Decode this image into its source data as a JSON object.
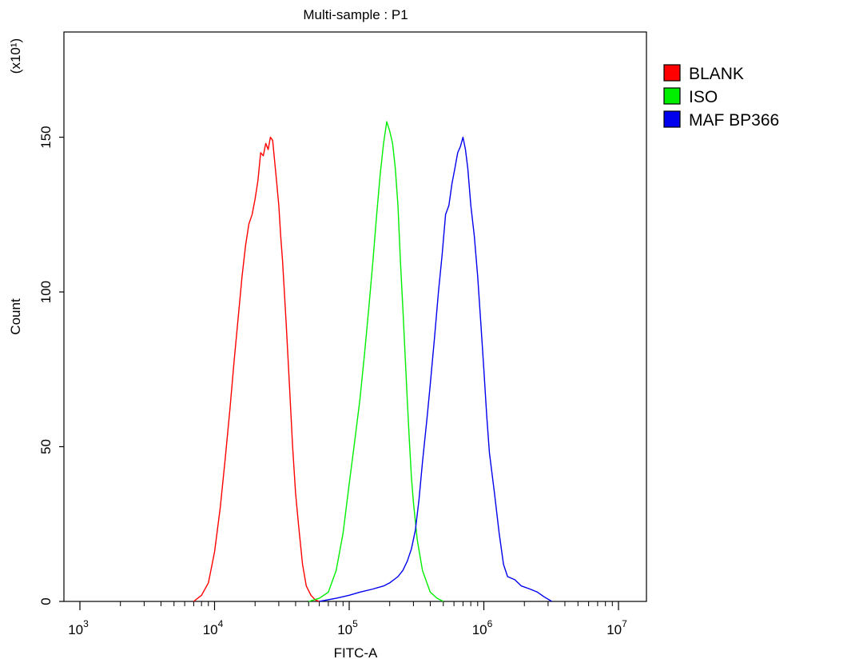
{
  "chart_data": {
    "type": "line",
    "title": "Multi-sample : P1",
    "xlabel": "FITC-A",
    "ylabel": "Count",
    "y_multiplier_label": "(x10¹)",
    "x_scale": "log",
    "xlim": [
      1000,
      10000000
    ],
    "ylim": [
      0,
      184
    ],
    "x_ticks": [
      {
        "exp": 3,
        "base": "10",
        "sup": "3"
      },
      {
        "exp": 4,
        "base": "10",
        "sup": "4"
      },
      {
        "exp": 5,
        "base": "10",
        "sup": "5"
      },
      {
        "exp": 6,
        "base": "10",
        "sup": "6"
      },
      {
        "exp": 7,
        "base": "10",
        "sup": "7"
      }
    ],
    "y_ticks": [
      0,
      50,
      100,
      150
    ],
    "legend_position": "right",
    "series": [
      {
        "name": "BLANK",
        "color": "#ff0000",
        "points": [
          [
            7000,
            0
          ],
          [
            8000,
            2
          ],
          [
            9000,
            6
          ],
          [
            10000,
            16
          ],
          [
            11000,
            30
          ],
          [
            12000,
            46
          ],
          [
            13000,
            62
          ],
          [
            14000,
            78
          ],
          [
            15000,
            92
          ],
          [
            16000,
            105
          ],
          [
            17000,
            115
          ],
          [
            18000,
            122
          ],
          [
            19000,
            125
          ],
          [
            20000,
            130
          ],
          [
            21000,
            136
          ],
          [
            22000,
            145
          ],
          [
            23000,
            144
          ],
          [
            24000,
            148
          ],
          [
            25000,
            146
          ],
          [
            26000,
            150
          ],
          [
            27000,
            149
          ],
          [
            28000,
            142
          ],
          [
            29000,
            135
          ],
          [
            30000,
            128
          ],
          [
            31000,
            118
          ],
          [
            32000,
            110
          ],
          [
            34000,
            90
          ],
          [
            36000,
            70
          ],
          [
            38000,
            50
          ],
          [
            40000,
            35
          ],
          [
            42000,
            25
          ],
          [
            45000,
            12
          ],
          [
            48000,
            5
          ],
          [
            52000,
            2
          ],
          [
            56000,
            0.5
          ],
          [
            60000,
            0
          ]
        ]
      },
      {
        "name": "ISO",
        "color": "#00ee00",
        "points": [
          [
            50000,
            0
          ],
          [
            60000,
            1
          ],
          [
            70000,
            3
          ],
          [
            80000,
            10
          ],
          [
            90000,
            22
          ],
          [
            100000,
            38
          ],
          [
            110000,
            52
          ],
          [
            120000,
            65
          ],
          [
            130000,
            80
          ],
          [
            140000,
            95
          ],
          [
            150000,
            110
          ],
          [
            160000,
            125
          ],
          [
            170000,
            138
          ],
          [
            180000,
            148
          ],
          [
            190000,
            155
          ],
          [
            200000,
            152
          ],
          [
            210000,
            148
          ],
          [
            220000,
            140
          ],
          [
            230000,
            128
          ],
          [
            240000,
            110
          ],
          [
            250000,
            95
          ],
          [
            260000,
            80
          ],
          [
            270000,
            65
          ],
          [
            280000,
            52
          ],
          [
            290000,
            40
          ],
          [
            300000,
            32
          ],
          [
            320000,
            20
          ],
          [
            350000,
            10
          ],
          [
            400000,
            3
          ],
          [
            450000,
            1
          ],
          [
            500000,
            0
          ]
        ]
      },
      {
        "name": "MAF BP366",
        "color": "#0000ee",
        "points": [
          [
            60000,
            0
          ],
          [
            80000,
            1
          ],
          [
            100000,
            2
          ],
          [
            120000,
            3
          ],
          [
            150000,
            4
          ],
          [
            180000,
            5
          ],
          [
            200000,
            6
          ],
          [
            230000,
            8
          ],
          [
            250000,
            10
          ],
          [
            270000,
            13
          ],
          [
            290000,
            17
          ],
          [
            310000,
            23
          ],
          [
            330000,
            33
          ],
          [
            350000,
            45
          ],
          [
            380000,
            60
          ],
          [
            400000,
            70
          ],
          [
            430000,
            85
          ],
          [
            460000,
            100
          ],
          [
            490000,
            112
          ],
          [
            520000,
            125
          ],
          [
            550000,
            128
          ],
          [
            580000,
            135
          ],
          [
            610000,
            140
          ],
          [
            640000,
            145
          ],
          [
            670000,
            147
          ],
          [
            700000,
            150
          ],
          [
            730000,
            146
          ],
          [
            760000,
            140
          ],
          [
            800000,
            128
          ],
          [
            850000,
            118
          ],
          [
            900000,
            105
          ],
          [
            950000,
            90
          ],
          [
            1000000,
            75
          ],
          [
            1050000,
            60
          ],
          [
            1100000,
            48
          ],
          [
            1200000,
            35
          ],
          [
            1300000,
            22
          ],
          [
            1400000,
            12
          ],
          [
            1500000,
            8
          ],
          [
            1700000,
            7
          ],
          [
            1900000,
            5
          ],
          [
            2200000,
            4
          ],
          [
            2500000,
            3
          ],
          [
            2800000,
            1.5
          ],
          [
            3200000,
            0
          ]
        ]
      }
    ]
  }
}
